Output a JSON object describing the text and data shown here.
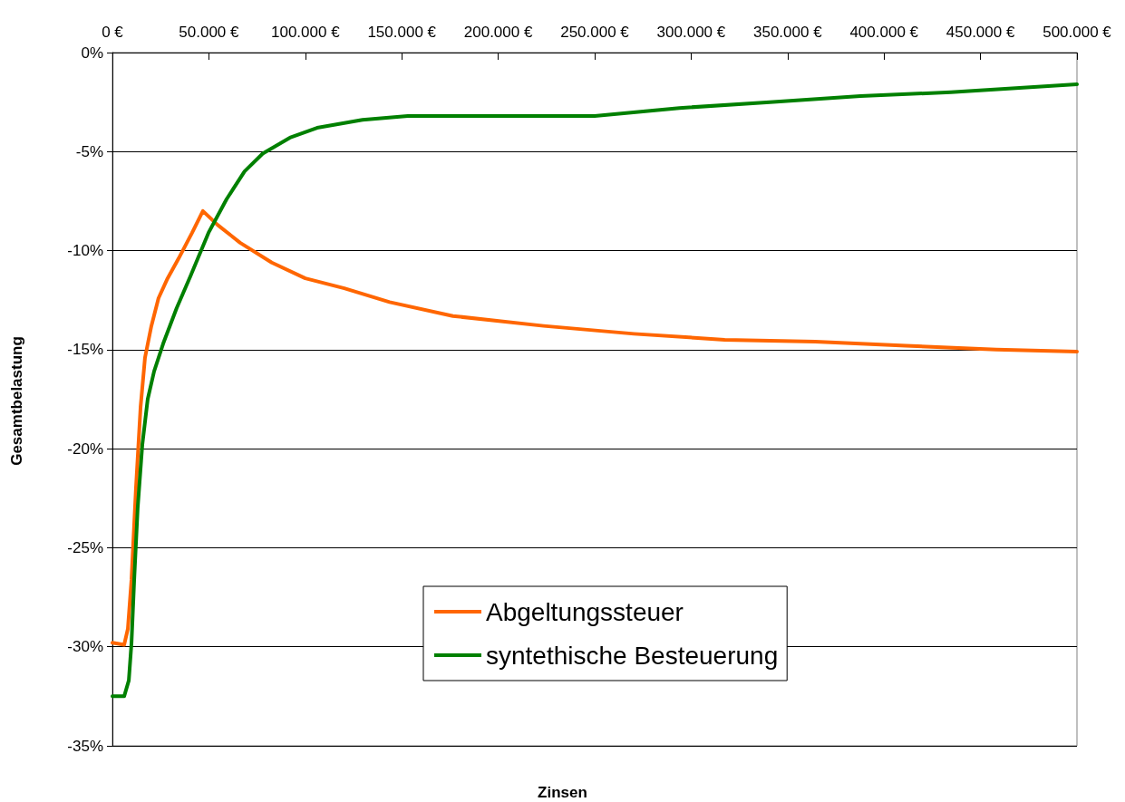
{
  "chart_data": {
    "type": "line",
    "xlabel": "Zinsen",
    "ylabel": "Gesamtbelastung",
    "xlim": [
      0,
      500000
    ],
    "xticks": [
      {
        "value": 0,
        "label": "0 €"
      },
      {
        "value": 50000,
        "label": "50.000 €"
      },
      {
        "value": 100000,
        "label": "100.000 €"
      },
      {
        "value": 150000,
        "label": "150.000 €"
      },
      {
        "value": 200000,
        "label": "200.000 €"
      },
      {
        "value": 250000,
        "label": "250.000 €"
      },
      {
        "value": 300000,
        "label": "300.000 €"
      },
      {
        "value": 350000,
        "label": "350.000 €"
      },
      {
        "value": 400000,
        "label": "400.000 €"
      },
      {
        "value": 450000,
        "label": "450.000 €"
      },
      {
        "value": 500000,
        "label": "500.000 €"
      }
    ],
    "ylim": [
      -35,
      0
    ],
    "yticks": [
      {
        "value": -35,
        "label": "-35%"
      },
      {
        "value": -30,
        "label": "-30%"
      },
      {
        "value": -25,
        "label": "-25%"
      },
      {
        "value": -20,
        "label": "-20%"
      },
      {
        "value": -15,
        "label": "-15%"
      },
      {
        "value": -10,
        "label": "-10%"
      },
      {
        "value": -5,
        "label": "-5%"
      },
      {
        "value": 0,
        "label": "0%"
      }
    ],
    "grid": "y",
    "legend": "bottom",
    "marker": "none",
    "line_style": "solid",
    "series": [
      {
        "name": "Abgeltungssteuer",
        "color": "#ff6600",
        "x": [
          0,
          6100,
          8000,
          9900,
          12200,
          14600,
          16900,
          20200,
          23900,
          28600,
          34300,
          41300,
          46900,
          54500,
          66200,
          82600,
          100000,
          120200,
          143700,
          176500,
          223500,
          270400,
          317400,
          364300,
          411300,
          458200,
          500000
        ],
        "values": [
          -29.8,
          -29.9,
          -29.1,
          -26.6,
          -22.0,
          -17.9,
          -15.4,
          -13.8,
          -12.4,
          -11.4,
          -10.4,
          -9.1,
          -8.0,
          -8.7,
          -9.6,
          -10.6,
          -11.4,
          -11.9,
          -12.6,
          -13.3,
          -13.8,
          -14.2,
          -14.5,
          -14.6,
          -14.8,
          -15.0,
          -15.1
        ]
      },
      {
        "name": "syntethische Besteuerung",
        "color": "#008000",
        "x": [
          0,
          6100,
          8500,
          9900,
          11300,
          13100,
          15500,
          18300,
          21600,
          26300,
          33300,
          40400,
          49800,
          59200,
          68500,
          77900,
          92000,
          106100,
          129600,
          153100,
          200000,
          250000,
          293900,
          340800,
          387800,
          434700,
          500000
        ],
        "values": [
          -32.5,
          -32.5,
          -31.7,
          -29.8,
          -26.6,
          -23.0,
          -19.8,
          -17.5,
          -16.1,
          -14.7,
          -12.9,
          -11.3,
          -9.1,
          -7.4,
          -6.0,
          -5.1,
          -4.3,
          -3.8,
          -3.4,
          -3.2,
          -3.2,
          -3.2,
          -2.8,
          -2.5,
          -2.2,
          -2.0,
          -1.6
        ]
      }
    ]
  }
}
